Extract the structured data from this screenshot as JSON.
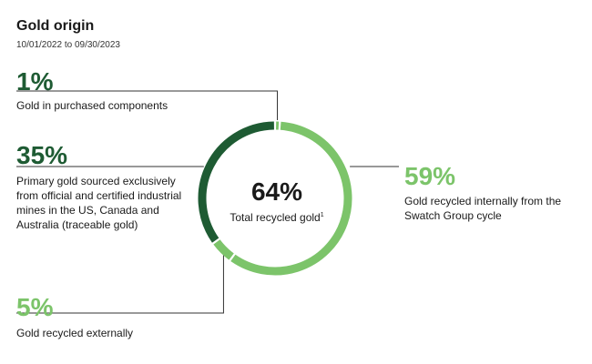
{
  "header": {
    "title": "Gold origin",
    "date_range": "10/01/2022 to 09/30/2023"
  },
  "colors": {
    "dark_green": "#1e5b33",
    "light_green": "#7cc46a",
    "text": "#1a1a1a",
    "connector": "#333333"
  },
  "chart_data": {
    "type": "pie",
    "title": "Gold origin",
    "subtitle": "10/01/2022 to 09/30/2023",
    "center": {
      "value": "64%",
      "label": "Total recycled gold",
      "footnote": "1"
    },
    "slices": [
      {
        "key": "purchased",
        "percent_label": "1%",
        "value": 1,
        "label": "Gold in purchased components",
        "color": "#7cc46a",
        "pct_color": "#1e5b33"
      },
      {
        "key": "internal",
        "percent_label": "59%",
        "value": 59,
        "label": "Gold recycled internally from the Swatch Group cycle",
        "color": "#7cc46a",
        "pct_color": "#7cc46a"
      },
      {
        "key": "external",
        "percent_label": "5%",
        "value": 5,
        "label": "Gold recycled externally",
        "color": "#7cc46a",
        "pct_color": "#7cc46a"
      },
      {
        "key": "primary",
        "percent_label": "35%",
        "value": 35,
        "label": "Primary gold sourced exclusively from official and certified industrial mines in the US, Canada and Australia (traceable gold)",
        "color": "#1e5b33",
        "pct_color": "#1e5b33"
      }
    ]
  }
}
